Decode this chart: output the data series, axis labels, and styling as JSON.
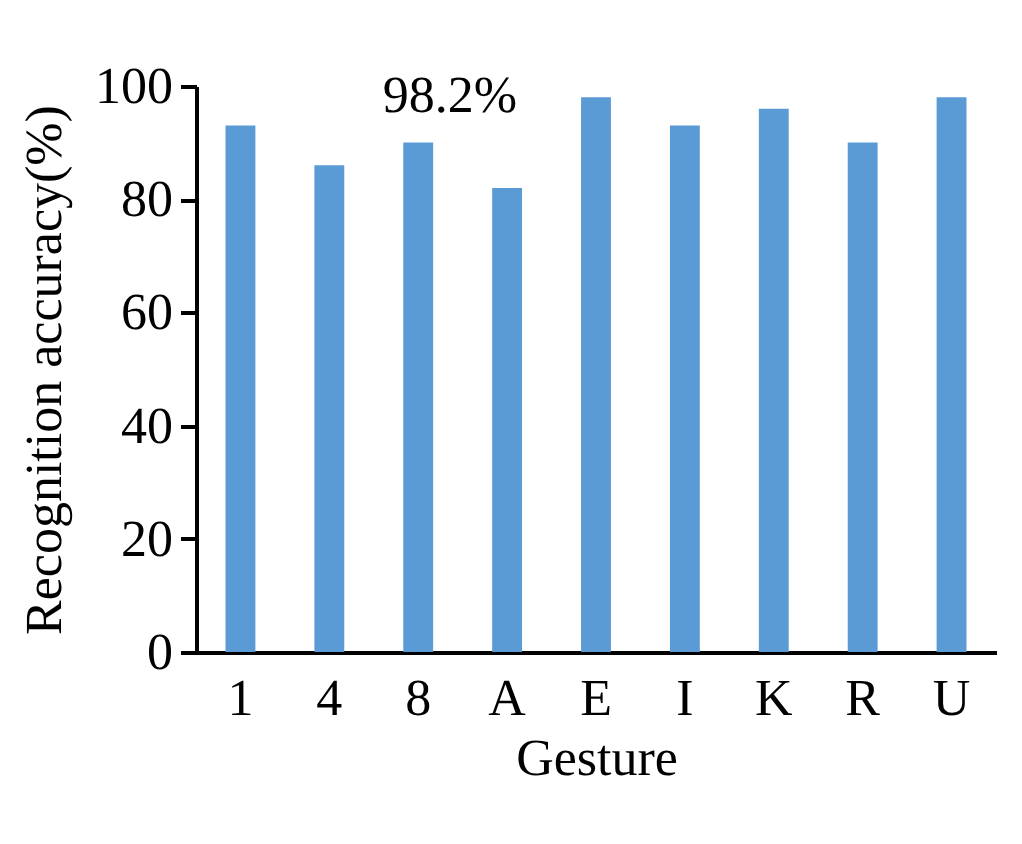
{
  "chart_data": {
    "type": "bar",
    "xlabel": "Gesture",
    "ylabel": "Recognition accuracy(%)",
    "categories": [
      "1",
      "4",
      "8",
      "A",
      "E",
      "I",
      "K",
      "R",
      "U"
    ],
    "values": [
      93,
      86,
      90,
      82,
      98,
      93,
      96,
      90,
      98
    ],
    "color": "#5b9bd5",
    "ylim": [
      0,
      100
    ],
    "yticks": [
      0,
      20,
      40,
      60,
      80,
      100
    ],
    "grid": false,
    "annotations": [
      "98.2%"
    ]
  }
}
